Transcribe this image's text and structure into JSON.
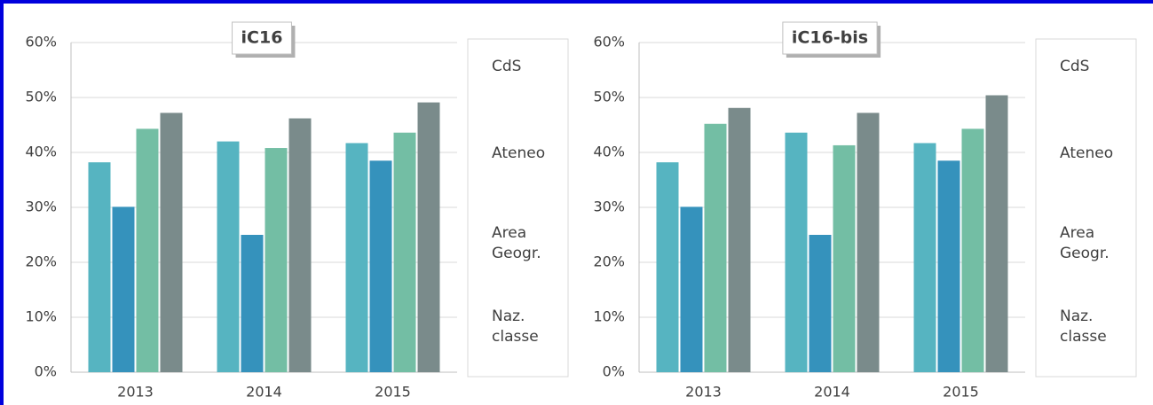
{
  "chart_data": [
    {
      "type": "bar",
      "title": "iC16",
      "categories": [
        "2013",
        "2014",
        "2015"
      ],
      "series": [
        {
          "name": "CdS",
          "color": "#56b4c1",
          "values": [
            38.2,
            42.0,
            41.7
          ]
        },
        {
          "name": "Ateneo",
          "color": "#3592bc",
          "values": [
            30.1,
            25.0,
            38.5
          ]
        },
        {
          "name": "Area Geogr.",
          "color": "#73bea4",
          "values": [
            44.3,
            40.8,
            43.6
          ]
        },
        {
          "name": "Naz. classe",
          "color": "#7a8b8b",
          "values": [
            47.2,
            46.2,
            49.1
          ]
        }
      ],
      "ylim": [
        0,
        60
      ],
      "yticks": [
        {
          "value": 0,
          "label": "0%"
        },
        {
          "value": 10,
          "label": "10%"
        },
        {
          "value": 20,
          "label": "20%"
        },
        {
          "value": 30,
          "label": "30%"
        },
        {
          "value": 40,
          "label": "40%"
        },
        {
          "value": 50,
          "label": "50%"
        },
        {
          "value": 60,
          "label": "60%"
        }
      ],
      "grid": true,
      "legend": "right"
    },
    {
      "type": "bar",
      "title": "iC16-bis",
      "categories": [
        "2013",
        "2014",
        "2015"
      ],
      "series": [
        {
          "name": "CdS",
          "color": "#56b4c1",
          "values": [
            38.2,
            43.6,
            41.7
          ]
        },
        {
          "name": "Ateneo",
          "color": "#3592bc",
          "values": [
            30.1,
            25.0,
            38.5
          ]
        },
        {
          "name": "Area Geogr.",
          "color": "#73bea4",
          "values": [
            45.2,
            41.3,
            44.3
          ]
        },
        {
          "name": "Naz. classe",
          "color": "#7a8b8b",
          "values": [
            48.1,
            47.2,
            50.4
          ]
        }
      ],
      "ylim": [
        0,
        60
      ],
      "yticks": [
        {
          "value": 0,
          "label": "0%"
        },
        {
          "value": 10,
          "label": "10%"
        },
        {
          "value": 20,
          "label": "20%"
        },
        {
          "value": 30,
          "label": "30%"
        },
        {
          "value": 40,
          "label": "40%"
        },
        {
          "value": 50,
          "label": "50%"
        },
        {
          "value": 60,
          "label": "60%"
        }
      ],
      "grid": true,
      "legend": "right"
    }
  ]
}
